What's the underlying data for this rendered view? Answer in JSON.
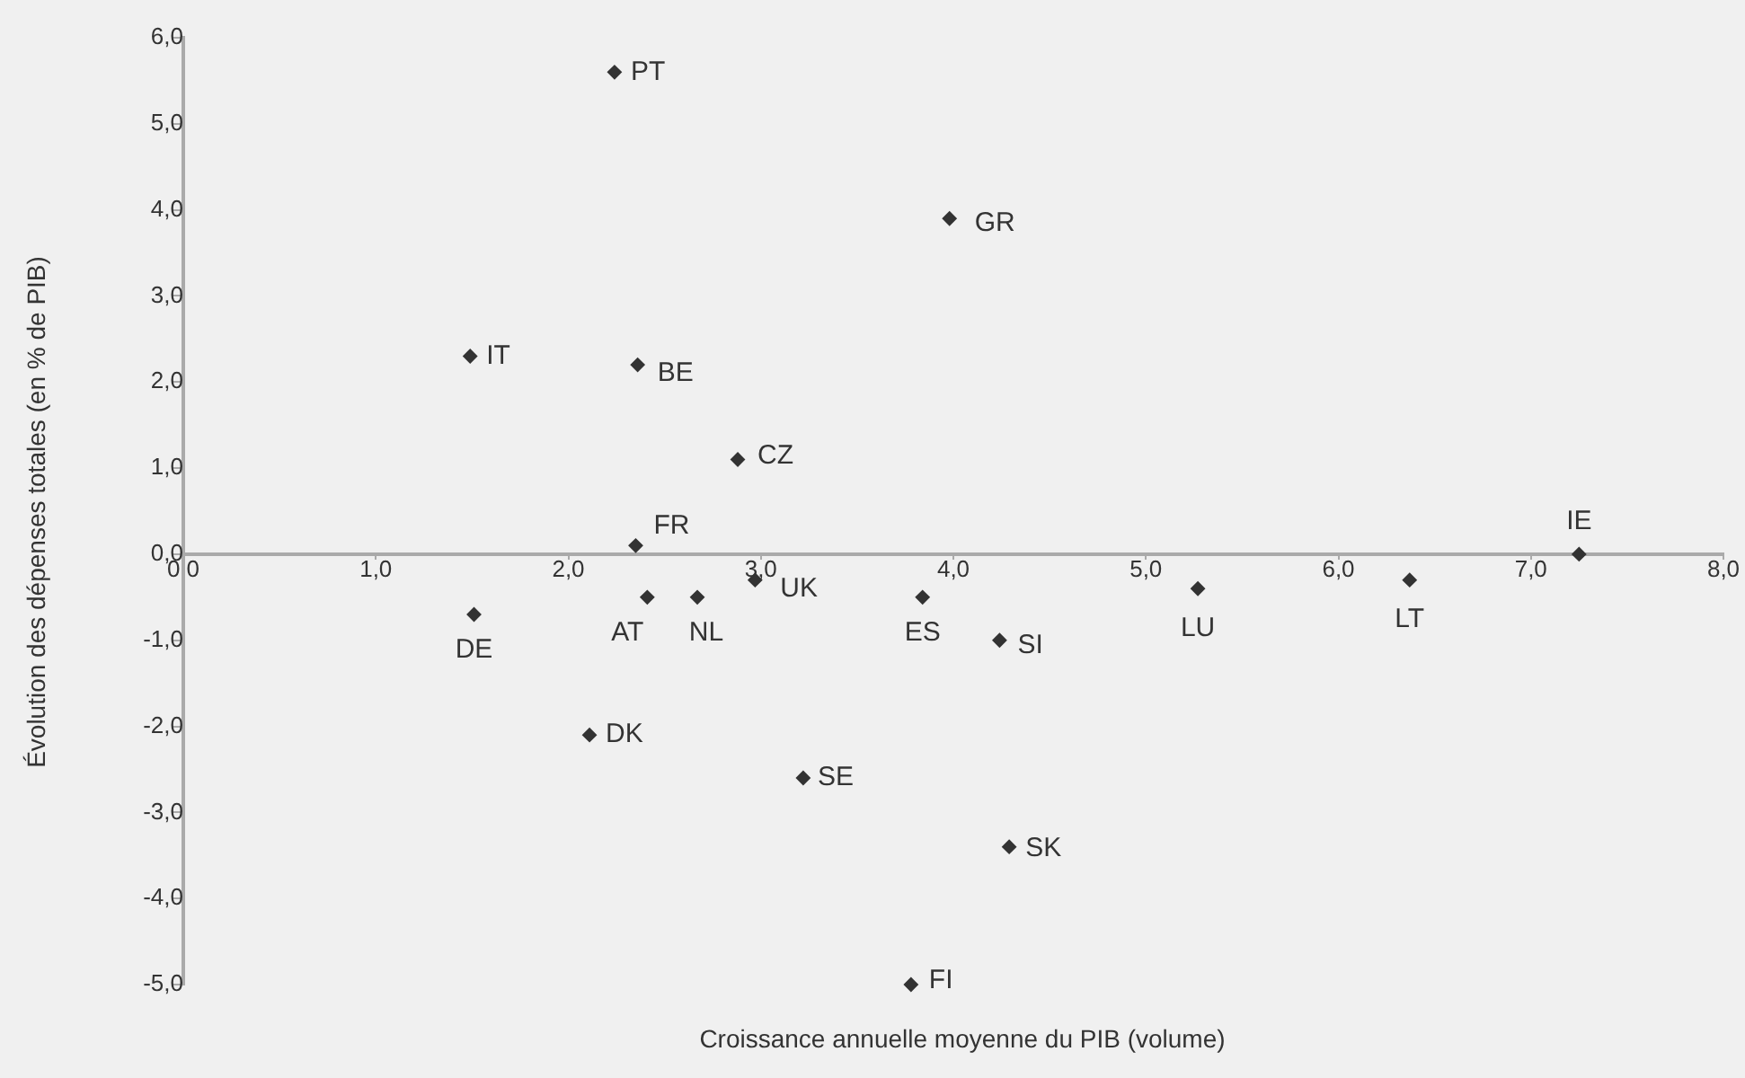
{
  "chart_data": {
    "type": "scatter",
    "xlabel": "Croissance annuelle moyenne du PIB (volume)",
    "ylabel": "Évolution des dépenses totales (en % de PIB)",
    "x": [
      2.24,
      3.98,
      1.49,
      2.36,
      2.88,
      2.35,
      7.25,
      1.51,
      2.41,
      2.67,
      2.97,
      3.84,
      4.24,
      5.27,
      6.37,
      2.11,
      3.22,
      4.29,
      3.78
    ],
    "series": [
      {
        "color": "#333333",
        "values": [
          5.6,
          3.9,
          2.3,
          2.2,
          1.1,
          0.1,
          0.0,
          -0.7,
          -0.5,
          -0.5,
          -0.3,
          -0.5,
          -1.0,
          -0.4,
          -0.3,
          -2.1,
          -2.6,
          -3.4,
          -5.0
        ]
      }
    ],
    "annotations": [
      {
        "text": "PT",
        "x": 2.24,
        "y": 5.6
      },
      {
        "text": "GR",
        "x": 3.98,
        "y": 3.9
      },
      {
        "text": "IT",
        "x": 1.49,
        "y": 2.3
      },
      {
        "text": "BE",
        "x": 2.36,
        "y": 2.2
      },
      {
        "text": "CZ",
        "x": 2.88,
        "y": 1.1
      },
      {
        "text": "FR",
        "x": 2.35,
        "y": 0.1
      },
      {
        "text": "IE",
        "x": 7.25,
        "y": 0.0
      },
      {
        "text": "DE",
        "x": 1.51,
        "y": -0.7
      },
      {
        "text": "AT",
        "x": 2.41,
        "y": -0.5
      },
      {
        "text": "NL",
        "x": 2.67,
        "y": -0.5
      },
      {
        "text": "UK",
        "x": 2.97,
        "y": -0.3
      },
      {
        "text": "ES",
        "x": 3.84,
        "y": -0.5
      },
      {
        "text": "SI",
        "x": 4.24,
        "y": -1.0
      },
      {
        "text": "LU",
        "x": 5.27,
        "y": -0.4
      },
      {
        "text": "LT",
        "x": 6.37,
        "y": -0.3
      },
      {
        "text": "DK",
        "x": 2.11,
        "y": -2.1
      },
      {
        "text": "SE",
        "x": 3.22,
        "y": -2.6
      },
      {
        "text": "SK",
        "x": 4.29,
        "y": -3.4
      },
      {
        "text": "FI",
        "x": 3.78,
        "y": -5.0
      }
    ],
    "xlim": [
      0,
      8
    ],
    "xticks": [
      {
        "value": 0,
        "label": "0,0"
      },
      {
        "value": 1,
        "label": "1,0"
      },
      {
        "value": 2,
        "label": "2,0"
      },
      {
        "value": 3,
        "label": "3,0"
      },
      {
        "value": 4,
        "label": "4,0"
      },
      {
        "value": 5,
        "label": "5,0"
      },
      {
        "value": 6,
        "label": "6,0"
      },
      {
        "value": 7,
        "label": "7,0"
      },
      {
        "value": 8,
        "label": "8,0"
      }
    ],
    "ylim": [
      -5,
      6
    ],
    "yticks": [
      {
        "value": -5,
        "label": "-5,0"
      },
      {
        "value": -4,
        "label": "-4,0"
      },
      {
        "value": -3,
        "label": "-3,0"
      },
      {
        "value": -2,
        "label": "-2,0"
      },
      {
        "value": -1,
        "label": "-1,0"
      },
      {
        "value": 0,
        "label": "0,0"
      },
      {
        "value": 1,
        "label": "1,0"
      },
      {
        "value": 2,
        "label": "2,0"
      },
      {
        "value": 3,
        "label": "3,0"
      },
      {
        "value": 4,
        "label": "4,0"
      },
      {
        "value": 5,
        "label": "5,0"
      },
      {
        "value": 6,
        "label": "6,0"
      }
    ],
    "grid": false,
    "legend": false,
    "marker": "diamond"
  }
}
